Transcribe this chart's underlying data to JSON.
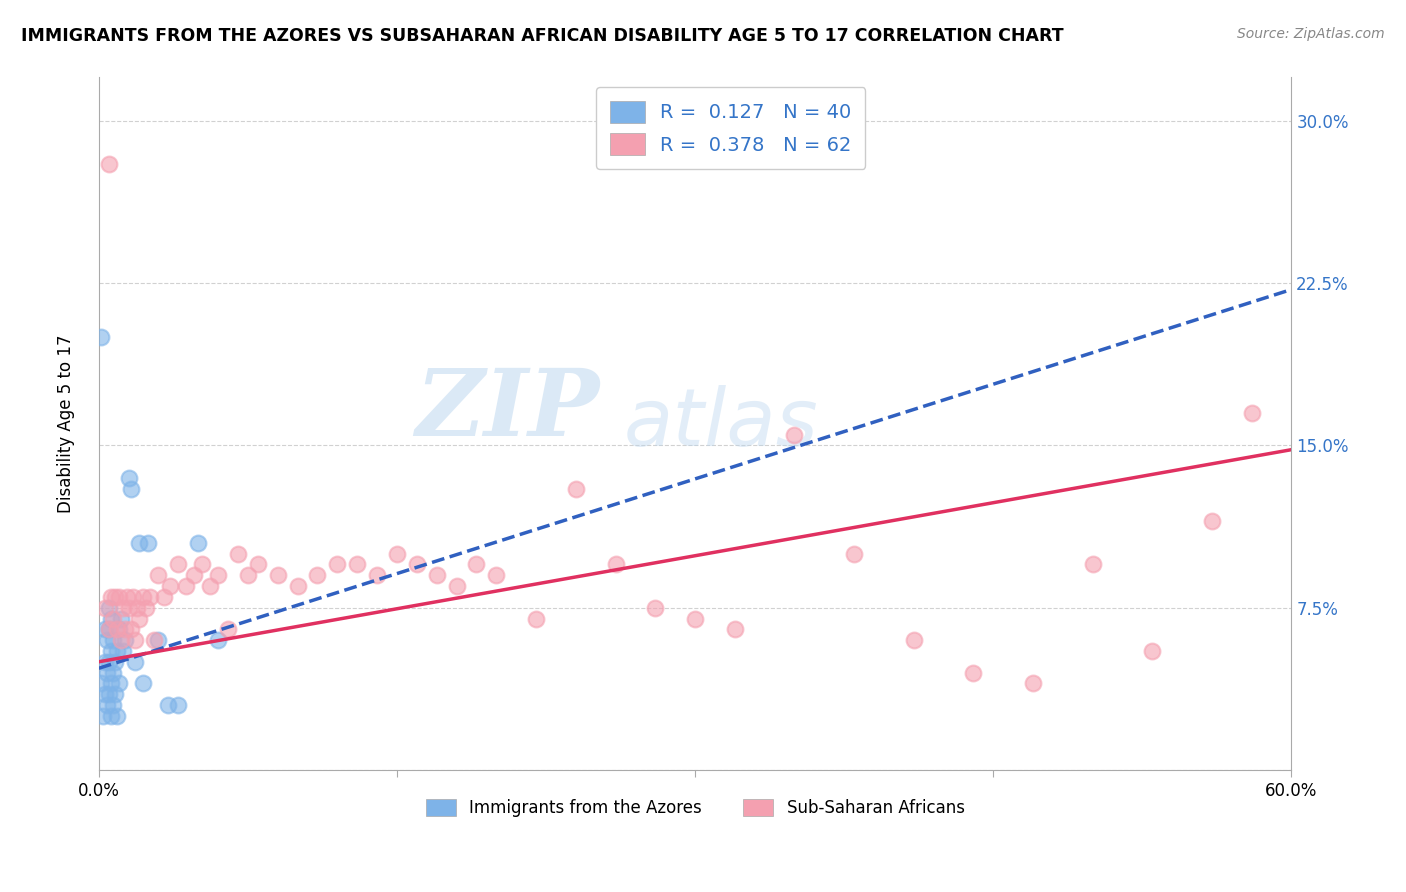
{
  "title": "IMMIGRANTS FROM THE AZORES VS SUBSAHARAN AFRICAN DISABILITY AGE 5 TO 17 CORRELATION CHART",
  "source": "Source: ZipAtlas.com",
  "ylabel": "Disability Age 5 to 17",
  "xlabel_azores": "Immigrants from the Azores",
  "xlabel_subsaharan": "Sub-Saharan Africans",
  "xlim": [
    0.0,
    0.6
  ],
  "ylim": [
    0.0,
    0.32
  ],
  "yticks": [
    0.0,
    0.075,
    0.15,
    0.225,
    0.3
  ],
  "ytick_labels": [
    "",
    "7.5%",
    "15.0%",
    "22.5%",
    "30.0%"
  ],
  "xticks": [
    0.0,
    0.15,
    0.3,
    0.45,
    0.6
  ],
  "xtick_labels": [
    "0.0%",
    "",
    "",
    "",
    "60.0%"
  ],
  "azores_color": "#7EB3E8",
  "subsaharan_color": "#F4A0B0",
  "trendline_azores_color": "#3060C0",
  "trendline_subsaharan_color": "#E03060",
  "r_azores": 0.127,
  "n_azores": 40,
  "r_subsaharan": 0.378,
  "n_subsaharan": 62,
  "azores_x": [
    0.001,
    0.002,
    0.003,
    0.003,
    0.003,
    0.004,
    0.004,
    0.004,
    0.005,
    0.005,
    0.005,
    0.005,
    0.006,
    0.006,
    0.006,
    0.006,
    0.007,
    0.007,
    0.007,
    0.008,
    0.008,
    0.009,
    0.009,
    0.01,
    0.01,
    0.011,
    0.012,
    0.013,
    0.015,
    0.016,
    0.018,
    0.02,
    0.022,
    0.025,
    0.03,
    0.035,
    0.04,
    0.05,
    0.06,
    0.001
  ],
  "azores_y": [
    0.04,
    0.025,
    0.035,
    0.05,
    0.065,
    0.03,
    0.045,
    0.06,
    0.035,
    0.05,
    0.065,
    0.075,
    0.025,
    0.04,
    0.055,
    0.07,
    0.03,
    0.045,
    0.06,
    0.035,
    0.05,
    0.025,
    0.055,
    0.04,
    0.065,
    0.07,
    0.055,
    0.06,
    0.135,
    0.13,
    0.05,
    0.105,
    0.04,
    0.105,
    0.06,
    0.03,
    0.03,
    0.105,
    0.06,
    0.2
  ],
  "subsaharan_x": [
    0.003,
    0.005,
    0.006,
    0.007,
    0.008,
    0.009,
    0.01,
    0.011,
    0.012,
    0.013,
    0.014,
    0.015,
    0.016,
    0.017,
    0.018,
    0.019,
    0.02,
    0.022,
    0.024,
    0.026,
    0.028,
    0.03,
    0.033,
    0.036,
    0.04,
    0.044,
    0.048,
    0.052,
    0.056,
    0.06,
    0.065,
    0.07,
    0.075,
    0.08,
    0.09,
    0.1,
    0.11,
    0.12,
    0.13,
    0.14,
    0.15,
    0.16,
    0.17,
    0.18,
    0.19,
    0.2,
    0.22,
    0.24,
    0.26,
    0.28,
    0.3,
    0.32,
    0.35,
    0.38,
    0.41,
    0.44,
    0.47,
    0.5,
    0.53,
    0.56,
    0.58,
    0.005
  ],
  "subsaharan_y": [
    0.075,
    0.065,
    0.08,
    0.07,
    0.08,
    0.065,
    0.08,
    0.06,
    0.075,
    0.065,
    0.08,
    0.075,
    0.065,
    0.08,
    0.06,
    0.075,
    0.07,
    0.08,
    0.075,
    0.08,
    0.06,
    0.09,
    0.08,
    0.085,
    0.095,
    0.085,
    0.09,
    0.095,
    0.085,
    0.09,
    0.065,
    0.1,
    0.09,
    0.095,
    0.09,
    0.085,
    0.09,
    0.095,
    0.095,
    0.09,
    0.1,
    0.095,
    0.09,
    0.085,
    0.095,
    0.09,
    0.07,
    0.13,
    0.095,
    0.075,
    0.07,
    0.065,
    0.155,
    0.1,
    0.06,
    0.045,
    0.04,
    0.095,
    0.055,
    0.115,
    0.165,
    0.28
  ],
  "watermark_zip": "ZIP",
  "watermark_atlas": "atlas",
  "background_color": "#FFFFFF",
  "grid_color": "#CCCCCC",
  "trendline_az_start_x": 0.0,
  "trendline_az_start_y": 0.047,
  "trendline_az_end_x": 0.6,
  "trendline_az_end_y": 0.222,
  "trendline_ss_start_x": 0.0,
  "trendline_ss_start_y": 0.05,
  "trendline_ss_end_x": 0.6,
  "trendline_ss_end_y": 0.148
}
